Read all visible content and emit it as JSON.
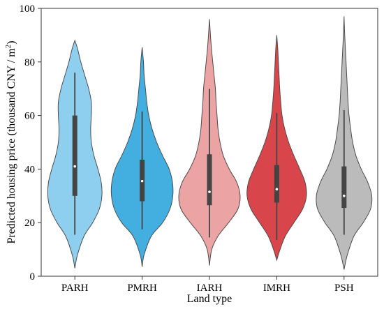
{
  "chart_data": {
    "type": "violin",
    "xlabel": "Land type",
    "ylabel_main": "Predicted housing price (thousand CNY / m",
    "ylabel_sup": "2",
    "ylabel_end": ")",
    "ylim": [
      0,
      100
    ],
    "yticks": [
      0,
      20,
      40,
      60,
      80,
      100
    ],
    "grid": false,
    "categories": [
      "PARH",
      "PMRH",
      "IARH",
      "IMRH",
      "PSH"
    ],
    "series": [
      {
        "color": "#8ecff0",
        "min": 15.5,
        "q1": 30,
        "median": 41,
        "q3": 60,
        "max": 76,
        "profile": [
          [
            3,
            0
          ],
          [
            8,
            0.08
          ],
          [
            15,
            0.28
          ],
          [
            20,
            0.54
          ],
          [
            25,
            0.74
          ],
          [
            30,
            0.82
          ],
          [
            35,
            0.8
          ],
          [
            40,
            0.7
          ],
          [
            45,
            0.58
          ],
          [
            50,
            0.5
          ],
          [
            55,
            0.48
          ],
          [
            60,
            0.5
          ],
          [
            65,
            0.5
          ],
          [
            70,
            0.42
          ],
          [
            75,
            0.3
          ],
          [
            80,
            0.18
          ],
          [
            85,
            0.08
          ],
          [
            88,
            0
          ]
        ]
      },
      {
        "color": "#43aee0",
        "min": 17.5,
        "q1": 28,
        "median": 35.5,
        "q3": 43.5,
        "max": 61.5,
        "profile": [
          [
            3.5,
            0
          ],
          [
            8,
            0.06
          ],
          [
            15,
            0.28
          ],
          [
            20,
            0.62
          ],
          [
            25,
            0.84
          ],
          [
            30,
            0.93
          ],
          [
            35,
            0.92
          ],
          [
            40,
            0.82
          ],
          [
            45,
            0.62
          ],
          [
            50,
            0.44
          ],
          [
            55,
            0.3
          ],
          [
            60,
            0.2
          ],
          [
            65,
            0.14
          ],
          [
            70,
            0.1
          ],
          [
            75,
            0.06
          ],
          [
            80,
            0.04
          ],
          [
            85.5,
            0
          ]
        ]
      },
      {
        "color": "#eba3a4",
        "min": 14.5,
        "q1": 26.5,
        "median": 31.5,
        "q3": 45.5,
        "max": 70,
        "profile": [
          [
            4,
            0
          ],
          [
            10,
            0.07
          ],
          [
            15,
            0.26
          ],
          [
            20,
            0.58
          ],
          [
            25,
            0.86
          ],
          [
            30,
            0.93
          ],
          [
            35,
            0.83
          ],
          [
            40,
            0.6
          ],
          [
            45,
            0.42
          ],
          [
            50,
            0.32
          ],
          [
            55,
            0.26
          ],
          [
            60,
            0.23
          ],
          [
            65,
            0.2
          ],
          [
            70,
            0.18
          ],
          [
            75,
            0.14
          ],
          [
            80,
            0.1
          ],
          [
            85,
            0.06
          ],
          [
            90,
            0.03
          ],
          [
            96,
            0
          ]
        ]
      },
      {
        "color": "#d8464b",
        "min": 13.5,
        "q1": 27.5,
        "median": 32.5,
        "q3": 41.5,
        "max": 61,
        "profile": [
          [
            6,
            0
          ],
          [
            10,
            0.1
          ],
          [
            15,
            0.26
          ],
          [
            20,
            0.52
          ],
          [
            25,
            0.78
          ],
          [
            30,
            0.9
          ],
          [
            35,
            0.86
          ],
          [
            40,
            0.7
          ],
          [
            45,
            0.52
          ],
          [
            50,
            0.36
          ],
          [
            55,
            0.24
          ],
          [
            60,
            0.16
          ],
          [
            65,
            0.12
          ],
          [
            70,
            0.09
          ],
          [
            75,
            0.07
          ],
          [
            80,
            0.05
          ],
          [
            85,
            0.03
          ],
          [
            90,
            0
          ]
        ]
      },
      {
        "color": "#bbbbbb",
        "min": 15.5,
        "q1": 25.5,
        "median": 30,
        "q3": 41,
        "max": 62,
        "profile": [
          [
            2.5,
            0
          ],
          [
            8,
            0.1
          ],
          [
            15,
            0.3
          ],
          [
            20,
            0.58
          ],
          [
            25,
            0.8
          ],
          [
            30,
            0.84
          ],
          [
            35,
            0.72
          ],
          [
            40,
            0.52
          ],
          [
            45,
            0.36
          ],
          [
            50,
            0.26
          ],
          [
            55,
            0.2
          ],
          [
            60,
            0.15
          ],
          [
            65,
            0.12
          ],
          [
            70,
            0.1
          ],
          [
            75,
            0.08
          ],
          [
            80,
            0.06
          ],
          [
            85,
            0.04
          ],
          [
            90,
            0.02
          ],
          [
            97,
            0
          ]
        ]
      }
    ]
  }
}
